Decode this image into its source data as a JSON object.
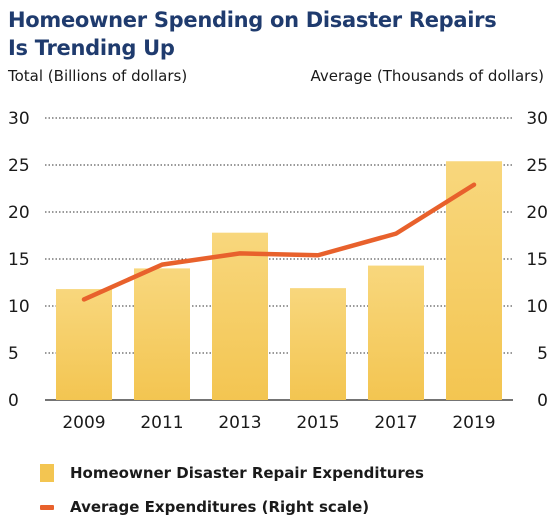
{
  "title_line1": "Homeowner Spending on Disaster Repairs",
  "title_line2": "Is Trending Up",
  "colors": {
    "title": "#1f3b6e",
    "bar": "#f3c551",
    "bar_light": "#f8d77d",
    "line": "#e8612c",
    "text": "#1a1a1a"
  },
  "chart_data": {
    "type": "bar",
    "categories": [
      "2009",
      "2011",
      "2013",
      "2015",
      "2017",
      "2019"
    ],
    "ylabel_left": "Total (Billions of dollars)",
    "ylabel_right": "Average (Thousands of dollars)",
    "ylim": [
      0,
      30
    ],
    "yticks": [
      0,
      5,
      10,
      15,
      20,
      25,
      30
    ],
    "grid": true,
    "legend_placement": "bottom",
    "series": [
      {
        "name": "Homeowner Disaster Repair Expenditures",
        "kind": "bar",
        "axis": "left",
        "values": [
          11.8,
          14.0,
          17.8,
          11.9,
          14.3,
          25.4
        ]
      },
      {
        "name": "Average Expenditures (Right scale)",
        "kind": "line",
        "axis": "right",
        "values": [
          10.7,
          14.4,
          15.6,
          15.4,
          17.7,
          22.9
        ]
      }
    ]
  }
}
